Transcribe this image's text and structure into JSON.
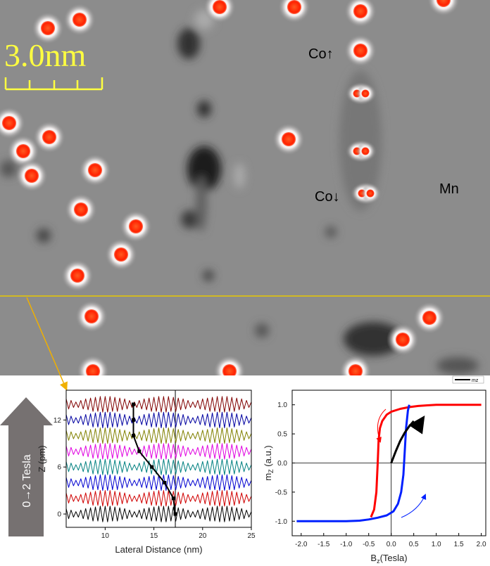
{
  "image": {
    "scale_label": "3.0nm",
    "labels": [
      "Co↑",
      "Co↓",
      "Mn"
    ],
    "legend": "mz",
    "field_label": "0→2 Tesla"
  },
  "chart_data": [
    {
      "type": "line",
      "xlabel": "Lateral Distance (nm)",
      "ylabel": "Z (pm)",
      "xlim": [
        6,
        25
      ],
      "ylim": [
        -1.7,
        15.8
      ],
      "xticks": [
        10,
        15,
        20,
        25
      ],
      "yticks": [
        0,
        6,
        12
      ],
      "vline": 17.2,
      "x": [
        6,
        6.25,
        6.5,
        6.75,
        7,
        7.25,
        7.5,
        7.75,
        8,
        8.25,
        8.5,
        8.75,
        9,
        9.25,
        9.5,
        9.75,
        10,
        10.25,
        10.5,
        10.75,
        11,
        11.25,
        11.5,
        11.75,
        12,
        12.25,
        12.5,
        12.75,
        13,
        13.25,
        13.5,
        13.75,
        14,
        14.25,
        14.5,
        14.75,
        15,
        15.25,
        15.5,
        15.75,
        16,
        16.25,
        16.5,
        16.75,
        17,
        17.25,
        17.5,
        17.75,
        18,
        18.25,
        18.5,
        18.75,
        19,
        19.25,
        19.5,
        19.75,
        20,
        20.25,
        20.5,
        20.75,
        21,
        21.25,
        21.5,
        21.75,
        22,
        22.25,
        22.5,
        22.75,
        23,
        23.25,
        23.5,
        23.75,
        24,
        24.25,
        24.5,
        24.75,
        25
      ],
      "series": [
        {
          "color": "#000000",
          "values": [
            0.7,
            -0.6,
            0.5,
            -0.4,
            0.3,
            -0.4,
            0.5,
            -0.6,
            0.7,
            -0.7,
            0.8,
            -0.9,
            0.9,
            -0.9,
            1,
            -1,
            1,
            -1,
            1,
            -0.9,
            0.9,
            -0.9,
            0.8,
            -0.7,
            0.7,
            -0.6,
            0.5,
            -0.4,
            0.3,
            -0.4,
            0.5,
            -0.6,
            0.7,
            -0.7,
            0.8,
            -0.9,
            0.9,
            -0.9,
            1,
            -1,
            1,
            -1,
            1,
            -0.9,
            0.9,
            -0.9,
            0.8,
            -0.7,
            0.7,
            -0.6,
            0.5,
            -0.4,
            0.3,
            -0.4,
            0.5,
            -0.6,
            0.7,
            -0.7,
            0.8,
            -0.9,
            0.9,
            -0.9,
            1,
            -1,
            1,
            -1,
            1,
            -0.9,
            0.9,
            -0.9,
            0.8,
            -0.7,
            0.7,
            -0.6,
            0.5,
            -0.4,
            0.3
          ]
        },
        {
          "color": "#d00000",
          "values": [
            2.7,
            1.4,
            2.5,
            1.6,
            2.3,
            1.6,
            2.5,
            1.4,
            2.7,
            1.3,
            2.8,
            1.1,
            2.9,
            1.1,
            3,
            1,
            3,
            1,
            3,
            1.1,
            2.9,
            1.1,
            2.8,
            1.3,
            2.7,
            1.4,
            2.5,
            1.6,
            2.3,
            1.6,
            2.5,
            1.4,
            2.7,
            1.3,
            2.8,
            1.1,
            2.9,
            1.1,
            3,
            1,
            3,
            1,
            3,
            1.1,
            2.9,
            1.1,
            2.8,
            1.3,
            2.7,
            1.4,
            2.5,
            1.6,
            2.3,
            1.6,
            2.5,
            1.4,
            2.7,
            1.3,
            2.8,
            1.1,
            2.9,
            1.1,
            3,
            1,
            3,
            1,
            3,
            1.1,
            2.9,
            1.1,
            2.8,
            1.3,
            2.7,
            1.4,
            2.5,
            1.6,
            2.3
          ]
        },
        {
          "color": "#0000d0",
          "values": [
            4.7,
            3.4,
            4.5,
            3.6,
            4.3,
            3.6,
            4.5,
            3.4,
            4.7,
            3.3,
            4.8,
            3.1,
            4.9,
            3.1,
            5,
            3,
            5,
            3,
            5,
            3.1,
            4.9,
            3.1,
            4.8,
            3.3,
            4.7,
            3.4,
            4.5,
            3.6,
            4.3,
            3.6,
            4.5,
            3.4,
            4.7,
            3.3,
            4.8,
            3.1,
            4.9,
            3.1,
            5,
            3,
            5,
            3,
            5,
            3.1,
            4.9,
            3.1,
            4.8,
            3.3,
            4.7,
            3.4,
            4.5,
            3.6,
            4.3,
            3.6,
            4.5,
            3.4,
            4.7,
            3.3,
            4.8,
            3.1,
            4.9,
            3.1,
            5,
            3,
            5,
            3,
            5,
            3.1,
            4.9,
            3.1,
            4.8,
            3.3,
            4.7,
            3.4,
            4.5,
            3.6,
            4.3
          ]
        },
        {
          "color": "#008080",
          "values": [
            6.7,
            5.4,
            6.5,
            5.6,
            6.3,
            5.6,
            6.5,
            5.4,
            6.7,
            5.3,
            6.8,
            5.1,
            6.9,
            5.1,
            7,
            5,
            7,
            5,
            7,
            5.1,
            6.9,
            5.1,
            6.8,
            5.3,
            6.7,
            5.4,
            6.5,
            5.6,
            6.3,
            5.6,
            6.5,
            5.4,
            6.7,
            5.3,
            6.8,
            5.1,
            6.9,
            5.1,
            7,
            5,
            7,
            5,
            7,
            5.1,
            6.9,
            5.1,
            6.8,
            5.3,
            6.7,
            5.4,
            6.5,
            5.6,
            6.3,
            5.6,
            6.5,
            5.4,
            6.7,
            5.3,
            6.8,
            5.1,
            6.9,
            5.1,
            7,
            5,
            7,
            5,
            7,
            5.1,
            6.9,
            5.1,
            6.8,
            5.3,
            6.7,
            5.4,
            6.5,
            5.6,
            6.3
          ]
        },
        {
          "color": "#e000e0",
          "values": [
            8.7,
            7.4,
            8.5,
            7.6,
            8.3,
            7.6,
            8.5,
            7.4,
            8.7,
            7.3,
            8.8,
            7.1,
            8.9,
            7.1,
            9,
            7,
            9,
            7,
            9,
            7.1,
            8.9,
            7.1,
            8.8,
            7.3,
            8.7,
            7.4,
            8.5,
            7.6,
            8.3,
            7.6,
            8.5,
            7.4,
            8.7,
            7.3,
            8.8,
            7.1,
            8.9,
            7.1,
            9,
            7,
            9,
            7,
            9,
            7.1,
            8.9,
            7.1,
            8.8,
            7.3,
            8.7,
            7.4,
            8.5,
            7.6,
            8.3,
            7.6,
            8.5,
            7.4,
            8.7,
            7.3,
            8.8,
            7.1,
            8.9,
            7.1,
            9,
            7,
            9,
            7,
            9,
            7.1,
            8.9,
            7.1,
            8.8,
            7.3,
            8.7,
            7.4,
            8.5,
            7.6,
            8.3
          ]
        },
        {
          "color": "#808000",
          "values": [
            10.7,
            9.4,
            10.5,
            9.6,
            10.3,
            9.6,
            10.5,
            9.4,
            10.7,
            9.3,
            10.8,
            9.1,
            10.9,
            9.1,
            11,
            9,
            11,
            9,
            11,
            9.1,
            10.9,
            9.1,
            10.8,
            9.3,
            10.7,
            9.4,
            10.5,
            9.6,
            10.3,
            9.6,
            10.5,
            9.4,
            10.7,
            9.3,
            10.8,
            9.1,
            10.9,
            9.1,
            11,
            9,
            11,
            9,
            11,
            9.1,
            10.9,
            9.1,
            10.8,
            9.3,
            10.7,
            9.4,
            10.5,
            9.6,
            10.3,
            9.6,
            10.5,
            9.4,
            10.7,
            9.3,
            10.8,
            9.1,
            10.9,
            9.1,
            11,
            9,
            11,
            9,
            11,
            9.1,
            10.9,
            9.1,
            10.8,
            9.3,
            10.7,
            9.4,
            10.5,
            9.6,
            10.3
          ]
        },
        {
          "color": "#0000a0",
          "values": [
            12.7,
            11.4,
            12.5,
            11.6,
            12.3,
            11.6,
            12.5,
            11.4,
            12.7,
            11.3,
            12.8,
            11.1,
            12.9,
            11.1,
            13,
            11,
            13,
            11,
            13,
            11.1,
            12.9,
            11.1,
            12.8,
            11.3,
            12.7,
            11.4,
            12.5,
            11.6,
            12.3,
            11.6,
            12.5,
            11.4,
            12.7,
            11.3,
            12.8,
            11.1,
            12.9,
            11.1,
            13,
            11,
            13,
            11,
            13,
            11.1,
            12.9,
            11.1,
            12.8,
            11.3,
            12.7,
            11.4,
            12.5,
            11.6,
            12.3,
            11.6,
            12.5,
            11.4,
            12.7,
            11.3,
            12.8,
            11.1,
            12.9,
            11.1,
            13,
            11,
            13,
            11,
            13,
            11.1,
            12.9,
            11.1,
            12.8,
            11.3,
            12.7,
            11.4,
            12.5,
            11.6,
            12.3
          ]
        },
        {
          "color": "#800000",
          "values": [
            14.7,
            13.4,
            14.5,
            13.6,
            14.3,
            13.6,
            14.5,
            13.4,
            14.7,
            13.3,
            14.8,
            13.1,
            14.9,
            13.1,
            15,
            13,
            15,
            13,
            15,
            13.1,
            14.9,
            13.1,
            14.8,
            13.3,
            14.7,
            13.4,
            14.5,
            13.6,
            14.3,
            13.6,
            14.5,
            13.4,
            14.7,
            13.3,
            14.8,
            13.1,
            14.9,
            13.1,
            15,
            13,
            15,
            13,
            15,
            13.1,
            14.9,
            13.1,
            14.8,
            13.3,
            14.7,
            13.4,
            14.5,
            13.6,
            14.3,
            13.6,
            14.5,
            13.4,
            14.7,
            13.3,
            14.8,
            13.1,
            14.9,
            13.1,
            15,
            13,
            15,
            13,
            15,
            13.1,
            14.9,
            13.1,
            14.8,
            13.3,
            14.7,
            13.4,
            14.5,
            13.6,
            14.3
          ]
        },
        {
          "color": "#000000",
          "marker": "square",
          "width": 2,
          "x": [
            17.2,
            17.0,
            16.1,
            14.8,
            13.5,
            12.9,
            12.9,
            12.9
          ],
          "values": [
            0,
            2,
            4,
            6,
            8,
            10,
            12,
            14
          ]
        }
      ]
    },
    {
      "type": "line",
      "xlabel": {
        "main": "B",
        "sub": "z",
        "rest": "(Tesla)"
      },
      "ylabel": {
        "main": "m",
        "sub": "Z",
        "rest": " (a.u.)"
      },
      "xlim": [
        -2.2,
        2.1
      ],
      "ylim": [
        -1.25,
        1.25
      ],
      "zero_lines": true,
      "xticks": [
        {
          "value": -2,
          "label": "-2.0"
        },
        -1.5,
        {
          "value": -1,
          "label": "-1.0"
        },
        -0.5,
        {
          "value": 0,
          "label": "0.0"
        },
        0.5,
        {
          "value": 1,
          "label": "1.0"
        },
        1.5,
        {
          "value": 2,
          "label": "2.0"
        }
      ],
      "yticks": [
        {
          "value": -1,
          "label": "-1.0"
        },
        -0.5,
        {
          "value": 0,
          "label": "0.0"
        },
        0.5,
        {
          "value": 1,
          "label": "1.0"
        }
      ],
      "series": [
        {
          "color": "#ff0000",
          "width": 3,
          "x": [
            2.0,
            1.5,
            1.0,
            0.8,
            0.6,
            0.4,
            0.2,
            0.0,
            -0.1,
            -0.2,
            -0.25,
            -0.28,
            -0.3,
            -0.33,
            -0.38,
            -0.45
          ],
          "values": [
            1,
            1,
            1,
            0.99,
            0.98,
            0.96,
            0.93,
            0.88,
            0.83,
            0.72,
            0.6,
            0.4,
            0.0,
            -0.5,
            -0.8,
            -0.93
          ]
        },
        {
          "color": "#0020ff",
          "width": 3,
          "x": [
            -2.1,
            -1.5,
            -1.0,
            -0.7,
            -0.5,
            -0.3,
            -0.1,
            0.05,
            0.15,
            0.22,
            0.27,
            0.3,
            0.33,
            0.37,
            0.4
          ],
          "values": [
            -1,
            -1,
            -1,
            -0.99,
            -0.97,
            -0.94,
            -0.9,
            -0.83,
            -0.7,
            -0.5,
            -0.2,
            0.2,
            0.6,
            0.9,
            1.0
          ]
        },
        {
          "color": "#000000",
          "width": 3,
          "x": [
            0,
            0.1,
            0.2,
            0.3,
            0.4,
            0.5
          ],
          "values": [
            0,
            0.2,
            0.38,
            0.52,
            0.63,
            0.72
          ]
        }
      ]
    }
  ]
}
